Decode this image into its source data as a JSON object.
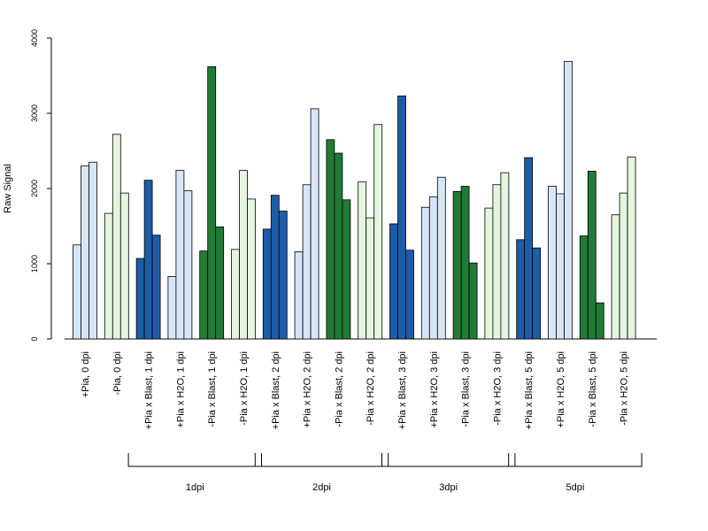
{
  "chart_data": {
    "type": "bar",
    "title": "",
    "xlabel": "",
    "ylabel": "Raw Signal",
    "ylim": [
      0,
      4000
    ],
    "yticks": [
      0,
      1000,
      2000,
      3000,
      4000
    ],
    "grid": false,
    "legend": "none",
    "colors": {
      "plus_pia_0": "#d6e6f7",
      "minus_pia_0": "#e5f5de",
      "pia_blast": "#1f5ca8",
      "pia_h2o": "#d6e6f7",
      "minus_blast": "#217a35",
      "minus_h2o": "#e5f5de"
    },
    "groups": [
      {
        "label": "+Pia, 0 dpi",
        "color": "#d6e6f7",
        "values": [
          1250,
          2300,
          2350
        ]
      },
      {
        "label": "-Pia, 0 dpi",
        "color": "#e5f5de",
        "values": [
          1670,
          2720,
          1940
        ]
      },
      {
        "label": "+Pia x Blast, 1 dpi",
        "color": "#1f5ca8",
        "values": [
          1070,
          2110,
          1380
        ]
      },
      {
        "label": "+Pia x H2O, 1 dpi",
        "color": "#d6e6f7",
        "values": [
          830,
          2240,
          1970
        ]
      },
      {
        "label": "-Pia x Blast, 1 dpi",
        "color": "#217a35",
        "values": [
          1170,
          3620,
          1490
        ]
      },
      {
        "label": "-Pia x H2O, 1 dpi",
        "color": "#e5f5de",
        "values": [
          1190,
          2240,
          1860
        ]
      },
      {
        "label": "+Pia x Blast, 2 dpi",
        "color": "#1f5ca8",
        "values": [
          1460,
          1910,
          1700
        ]
      },
      {
        "label": "+Pia x H2O, 2 dpi",
        "color": "#d6e6f7",
        "values": [
          1160,
          2050,
          3060
        ]
      },
      {
        "label": "-Pia x Blast, 2 dpi",
        "color": "#217a35",
        "values": [
          2650,
          2470,
          1850
        ]
      },
      {
        "label": "-Pia x H2O, 2 dpi",
        "color": "#e5f5de",
        "values": [
          2090,
          1610,
          2850
        ]
      },
      {
        "label": "+Pia x Blast, 3 dpi",
        "color": "#1f5ca8",
        "values": [
          1530,
          3230,
          1180
        ]
      },
      {
        "label": "+Pia x H2O, 3 dpi",
        "color": "#d6e6f7",
        "values": [
          1750,
          1890,
          2150
        ]
      },
      {
        "label": "-Pia x Blast, 3 dpi",
        "color": "#217a35",
        "values": [
          1960,
          2030,
          1010
        ]
      },
      {
        "label": "-Pia x H2O, 3 dpi",
        "color": "#e5f5de",
        "values": [
          1740,
          2050,
          2210
        ]
      },
      {
        "label": "+Pia x Blast, 5 dpi",
        "color": "#1f5ca8",
        "values": [
          1320,
          2410,
          1210
        ]
      },
      {
        "label": "+Pia x H2O, 5 dpi",
        "color": "#d6e6f7",
        "values": [
          2030,
          1930,
          3690
        ]
      },
      {
        "label": "-Pia x Blast, 5 dpi",
        "color": "#217a35",
        "values": [
          1370,
          2230,
          480
        ]
      },
      {
        "label": "-Pia x H2O, 5 dpi",
        "color": "#e5f5de",
        "values": [
          1650,
          1940,
          2420
        ]
      }
    ],
    "brackets": [
      {
        "label": "1dpi",
        "from_group": 2,
        "to_group": 5
      },
      {
        "label": "2dpi",
        "from_group": 6,
        "to_group": 9
      },
      {
        "label": "3dpi",
        "from_group": 10,
        "to_group": 13
      },
      {
        "label": "5dpi",
        "from_group": 14,
        "to_group": 17
      }
    ]
  }
}
